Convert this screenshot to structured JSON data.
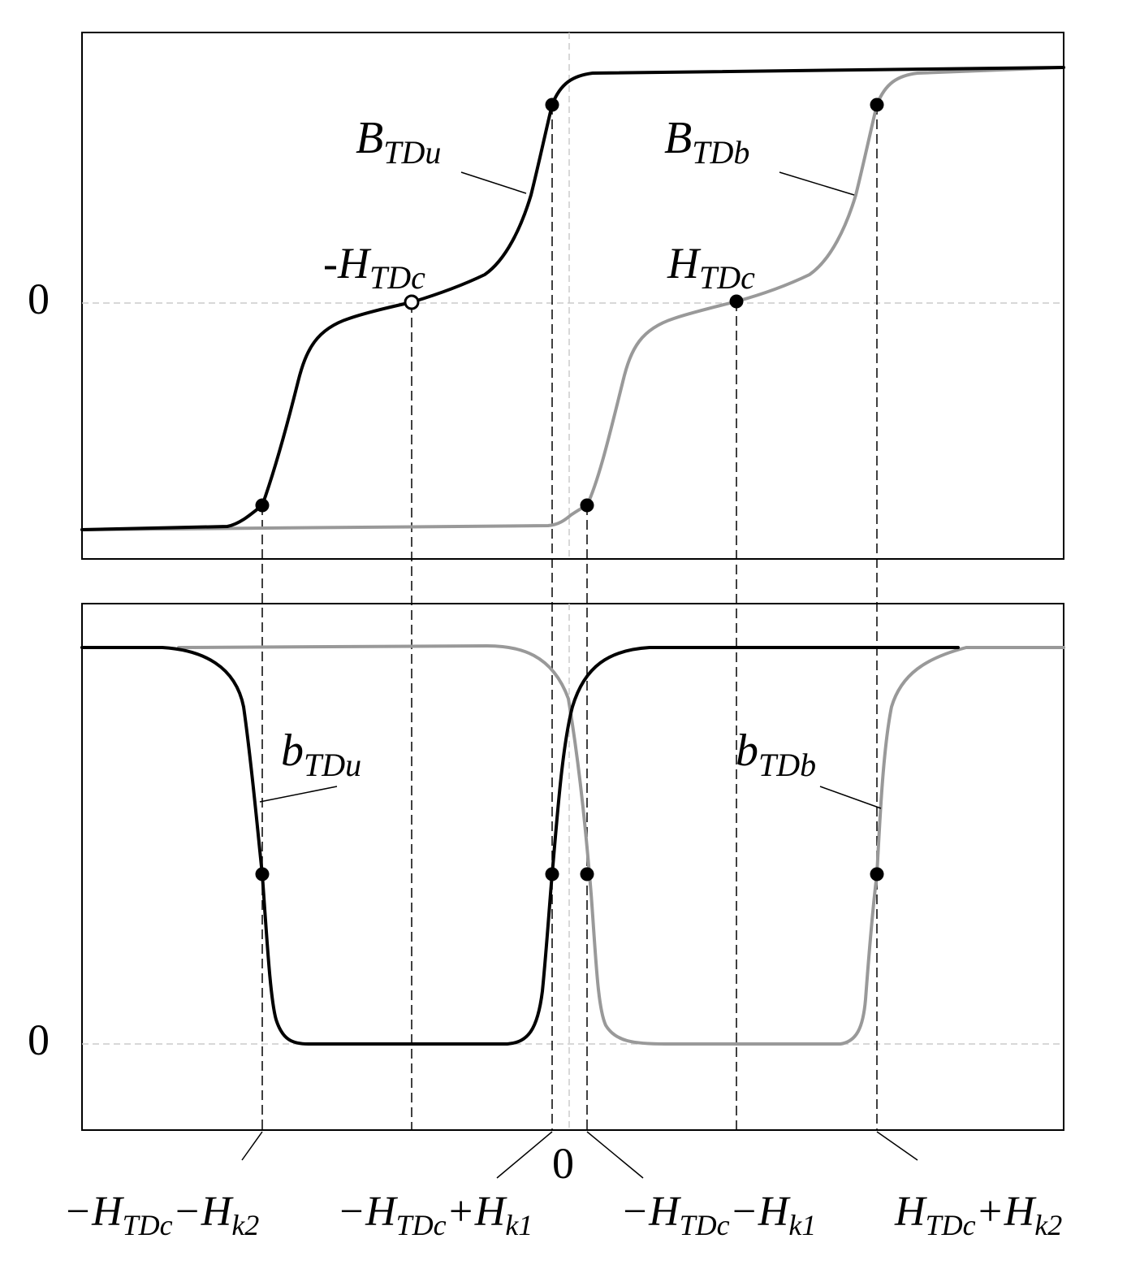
{
  "diagram": {
    "top_panel": {
      "zero_label": "0",
      "curve_labels": {
        "B_TDu": {
          "main": "B",
          "sub": "TDu"
        },
        "B_TDb": {
          "main": "B",
          "sub": "TDb"
        }
      },
      "point_labels": {
        "neg_H_TDc": {
          "main": "-H",
          "sub": "TDc"
        },
        "H_TDc": {
          "main": "H",
          "sub": "TDc"
        }
      }
    },
    "bottom_panel": {
      "zero_label": "0",
      "curve_labels": {
        "b_TDu": {
          "main": "b",
          "sub": "TDu"
        },
        "b_TDb": {
          "main": "b",
          "sub": "TDb"
        }
      }
    },
    "x_axis": {
      "zero_label": "0",
      "tick_labels": {
        "l1": {
          "a": "−H",
          "a_sub": "TDc",
          "op": "−H",
          "b_sub": "k2"
        },
        "l2": {
          "a": "−H",
          "a_sub": "TDc",
          "op": "+H",
          "b_sub": "k1"
        },
        "l3": {
          "a": "−H",
          "a_sub": "TDc",
          "op": "−H",
          "b_sub": "k1"
        },
        "l4": {
          "a": "H",
          "a_sub": "TDc",
          "op": "+H",
          "b_sub": "k2"
        }
      }
    },
    "colors": {
      "curve_u": "#000000",
      "curve_b": "#999999",
      "guide": "#cccccc",
      "frame": "#000000"
    }
  }
}
